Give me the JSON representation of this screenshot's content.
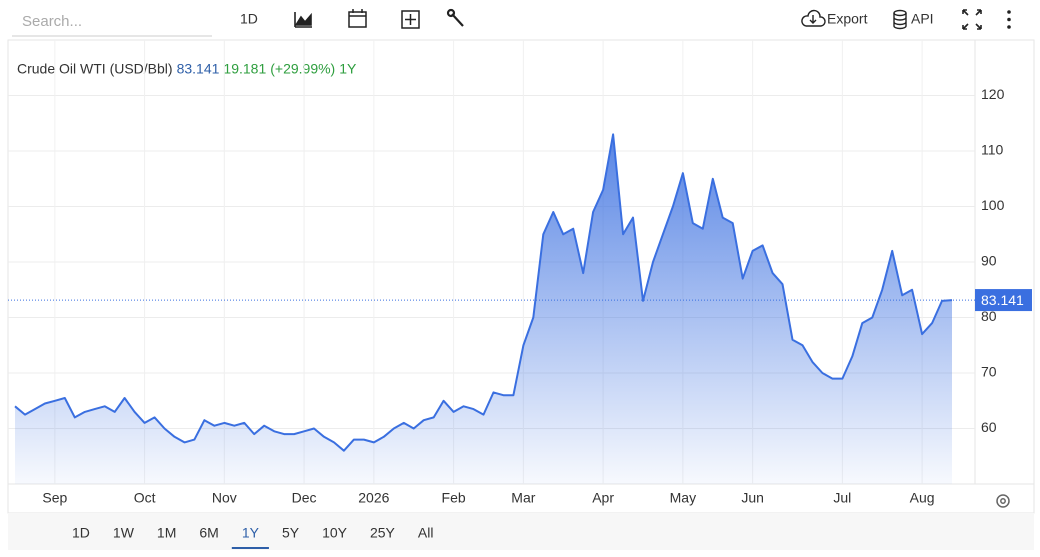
{
  "toolbar": {
    "search_placeholder": "Search...",
    "interval": "1D",
    "export": "Export",
    "api": "API"
  },
  "chart_data": {
    "type": "area",
    "title": "Crude Oil WTI (USD/Bbl)",
    "change": "19.181",
    "change_pct": "(+29.99%)",
    "range": "1Y",
    "categories": [
      null,
      null,
      null,
      null,
      "Sep",
      null,
      null,
      null,
      null,
      null,
      null,
      null,
      null,
      "Oct",
      null,
      null,
      null,
      null,
      null,
      null,
      null,
      "Nov",
      null,
      null,
      null,
      null,
      null,
      null,
      null,
      "Dec",
      null,
      null,
      null,
      null,
      null,
      null,
      "2026",
      null,
      null,
      null,
      null,
      null,
      null,
      null,
      "Feb",
      null,
      null,
      null,
      null,
      null,
      null,
      "Mar",
      null,
      null,
      null,
      null,
      null,
      null,
      null,
      "Apr",
      null,
      null,
      null,
      null,
      null,
      null,
      null,
      "May",
      null,
      null,
      null,
      null,
      null,
      null,
      "Jun",
      null,
      null,
      null,
      null,
      null,
      null,
      null,
      null,
      "Jul",
      null,
      null,
      null,
      null,
      null,
      null,
      null,
      "Aug",
      null,
      null,
      null
    ],
    "values": [
      64,
      62.5,
      63.5,
      64.5,
      65,
      65.5,
      62,
      63,
      63.5,
      64,
      63,
      65.5,
      63,
      61,
      62,
      60,
      58.5,
      57.5,
      58,
      61.5,
      60.5,
      61,
      60.5,
      61,
      59,
      60.5,
      59.5,
      59,
      59,
      59.5,
      60,
      58.5,
      57.5,
      56,
      58,
      58,
      57.5,
      58.5,
      60,
      61,
      60,
      61.5,
      62,
      65,
      63,
      64,
      63.5,
      62.5,
      66.5,
      66,
      66,
      75,
      80,
      95,
      99,
      95,
      96,
      88,
      99,
      103,
      113,
      95,
      98,
      83,
      90,
      95,
      100,
      106,
      97,
      96,
      105,
      98,
      97,
      87,
      92,
      93,
      88,
      86,
      76,
      75,
      72,
      70,
      69,
      69,
      73,
      79,
      80,
      85,
      92,
      84,
      85,
      77,
      79,
      83,
      83.141
    ],
    "color": "#3a6fe0",
    "ylim": [
      50,
      130
    ],
    "yticks": [
      60,
      70,
      80,
      90,
      100,
      110,
      120
    ],
    "grid": true
  },
  "ranges": [
    "1D",
    "1W",
    "1M",
    "6M",
    "1Y",
    "5Y",
    "10Y",
    "25Y",
    "All"
  ]
}
